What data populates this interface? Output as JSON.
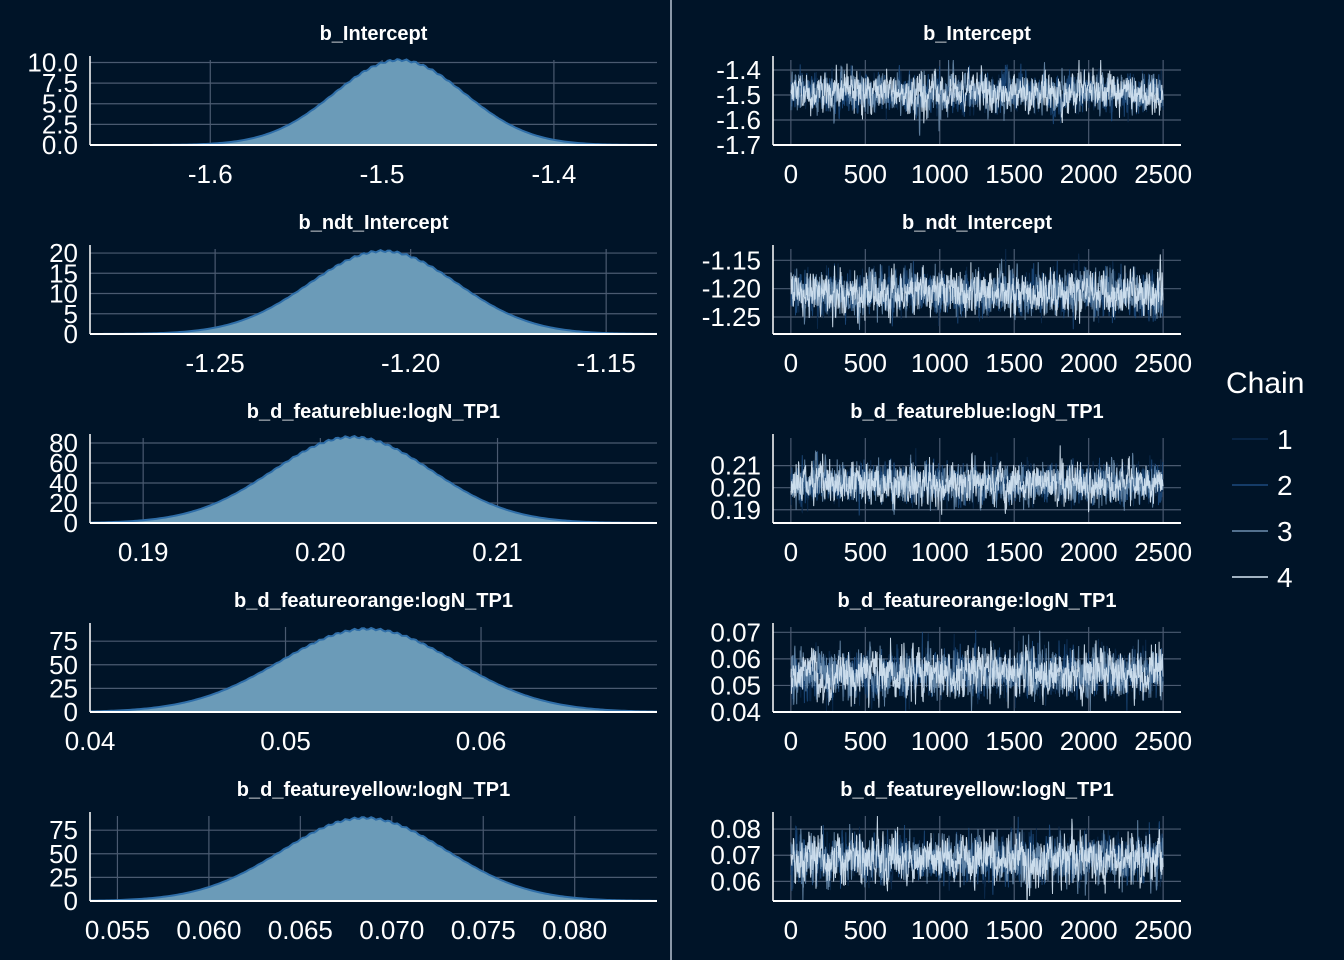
{
  "chart_data": [
    {
      "type": "area",
      "kind": "density",
      "title": "b_Intercept",
      "x_range": [
        -1.67,
        -1.34
      ],
      "x_ticks": [
        -1.6,
        -1.5,
        -1.4
      ],
      "x_tick_labels": [
        "-1.6",
        "-1.5",
        "-1.4"
      ],
      "ylim": [
        0,
        10.3
      ],
      "y_ticks": [
        0,
        2.5,
        5,
        7.5,
        10
      ],
      "y_tick_labels": [
        "0.0",
        "2.5",
        "5.0",
        "7.5",
        "10.0"
      ],
      "peak_x": -1.49,
      "peak_y": 10.3,
      "sd": 0.038
    },
    {
      "type": "line",
      "kind": "trace",
      "title": "b_Intercept",
      "x_range": [
        -120,
        2620
      ],
      "x_ticks": [
        0,
        500,
        1000,
        1500,
        2000,
        2500
      ],
      "x_tick_labels": [
        "0",
        "500",
        "1000",
        "1500",
        "2000",
        "2500"
      ],
      "ylim": [
        -1.7,
        -1.36
      ],
      "y_ticks": [
        -1.7,
        -1.6,
        -1.5,
        -1.4
      ],
      "y_tick_labels": [
        "-1.7",
        "-1.6",
        "-1.5",
        "-1.4"
      ],
      "mean": -1.49,
      "sd": 0.038,
      "iterations": 2500
    },
    {
      "type": "area",
      "kind": "density",
      "title": "b_ndt_Intercept",
      "x_range": [
        -1.282,
        -1.137
      ],
      "x_ticks": [
        -1.25,
        -1.2,
        -1.15
      ],
      "x_tick_labels": [
        "-1.25",
        "-1.20",
        "-1.15"
      ],
      "ylim": [
        0,
        21
      ],
      "y_ticks": [
        0,
        5,
        10,
        15,
        20
      ],
      "y_tick_labels": [
        "0",
        "5",
        "10",
        "15",
        "20"
      ],
      "peak_x": -1.207,
      "peak_y": 20.5,
      "sd": 0.019
    },
    {
      "type": "line",
      "kind": "trace",
      "title": "b_ndt_Intercept",
      "x_range": [
        -120,
        2620
      ],
      "x_ticks": [
        0,
        500,
        1000,
        1500,
        2000,
        2500
      ],
      "x_tick_labels": [
        "0",
        "500",
        "1000",
        "1500",
        "2000",
        "2500"
      ],
      "ylim": [
        -1.28,
        -1.13
      ],
      "y_ticks": [
        -1.25,
        -1.2,
        -1.15
      ],
      "y_tick_labels": [
        "-1.25",
        "-1.20",
        "-1.15"
      ],
      "mean": -1.207,
      "sd": 0.019,
      "iterations": 2500
    },
    {
      "type": "area",
      "kind": "density",
      "title": "b_d_featureblue:logN_TP1",
      "x_range": [
        0.187,
        0.219
      ],
      "x_ticks": [
        0.19,
        0.2,
        0.21
      ],
      "x_tick_labels": [
        "0.19",
        "0.20",
        "0.21"
      ],
      "ylim": [
        0,
        85
      ],
      "y_ticks": [
        0,
        20,
        40,
        60,
        80
      ],
      "y_tick_labels": [
        "0",
        "20",
        "40",
        "60",
        "80"
      ],
      "peak_x": 0.2018,
      "peak_y": 86,
      "sd": 0.0045
    },
    {
      "type": "line",
      "kind": "trace",
      "title": "b_d_featureblue:logN_TP1",
      "x_range": [
        -120,
        2620
      ],
      "x_ticks": [
        0,
        500,
        1000,
        1500,
        2000,
        2500
      ],
      "x_tick_labels": [
        "0",
        "500",
        "1000",
        "1500",
        "2000",
        "2500"
      ],
      "ylim": [
        0.184,
        0.2225
      ],
      "y_ticks": [
        0.19,
        0.2,
        0.21
      ],
      "y_tick_labels": [
        "0.19",
        "0.20",
        "0.21"
      ],
      "mean": 0.2018,
      "sd": 0.0045,
      "iterations": 2500
    },
    {
      "type": "area",
      "kind": "density",
      "title": "b_d_featureorange:logN_TP1",
      "x_range": [
        0.04,
        0.069
      ],
      "x_ticks": [
        0.04,
        0.05,
        0.06
      ],
      "x_tick_labels": [
        "0.04",
        "0.05",
        "0.06"
      ],
      "ylim": [
        0,
        90
      ],
      "y_ticks": [
        0,
        25,
        50,
        75
      ],
      "y_tick_labels": [
        "0",
        "25",
        "50",
        "75"
      ],
      "peak_x": 0.0542,
      "peak_y": 88,
      "sd": 0.0045
    },
    {
      "type": "line",
      "kind": "trace",
      "title": "b_d_featureorange:logN_TP1",
      "x_range": [
        -120,
        2620
      ],
      "x_ticks": [
        0,
        500,
        1000,
        1500,
        2000,
        2500
      ],
      "x_tick_labels": [
        "0",
        "500",
        "1000",
        "1500",
        "2000",
        "2500"
      ],
      "ylim": [
        0.04,
        0.072
      ],
      "y_ticks": [
        0.04,
        0.05,
        0.06,
        0.07
      ],
      "y_tick_labels": [
        "0.04",
        "0.05",
        "0.06",
        "0.07"
      ],
      "mean": 0.0542,
      "sd": 0.0045,
      "iterations": 2500
    },
    {
      "type": "area",
      "kind": "density",
      "title": "b_d_featureyellow:logN_TP1",
      "x_range": [
        0.0535,
        0.0845
      ],
      "x_ticks": [
        0.055,
        0.06,
        0.065,
        0.07,
        0.075,
        0.08
      ],
      "x_tick_labels": [
        "0.055",
        "0.060",
        "0.065",
        "0.070",
        "0.075",
        "0.080"
      ],
      "ylim": [
        0,
        90
      ],
      "y_ticks": [
        0,
        25,
        50,
        75
      ],
      "y_tick_labels": [
        "0",
        "25",
        "50",
        "75"
      ],
      "peak_x": 0.0685,
      "peak_y": 88,
      "sd": 0.0045
    },
    {
      "type": "line",
      "kind": "trace",
      "title": "b_d_featureyellow:logN_TP1",
      "x_range": [
        -120,
        2620
      ],
      "x_ticks": [
        0,
        500,
        1000,
        1500,
        2000,
        2500
      ],
      "x_tick_labels": [
        "0",
        "500",
        "1000",
        "1500",
        "2000",
        "2500"
      ],
      "ylim": [
        0.0525,
        0.085
      ],
      "y_ticks": [
        0.06,
        0.07,
        0.08
      ],
      "y_tick_labels": [
        "0.06",
        "0.07",
        "0.08"
      ],
      "mean": 0.0685,
      "sd": 0.0045,
      "iterations": 2500
    }
  ],
  "legend": {
    "title": "Chain",
    "items": [
      {
        "label": "1",
        "color": "#0b2a4d"
      },
      {
        "label": "2",
        "color": "#1c4a7d"
      },
      {
        "label": "3",
        "color": "#6d8fb0"
      },
      {
        "label": "4",
        "color": "#d8e8f5"
      }
    ]
  },
  "colors": {
    "background": "#001428",
    "grid": "#4a5a70",
    "axis": "#ffffff",
    "density_fill": "#6b9bb8",
    "density_line": "#2f6ea8"
  }
}
